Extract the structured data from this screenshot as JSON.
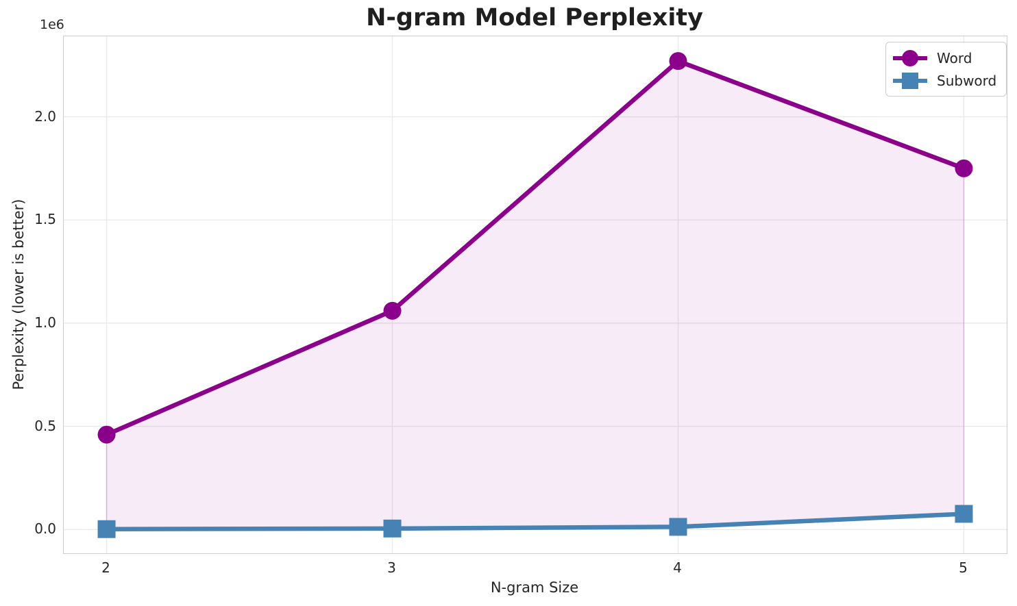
{
  "chart_data": {
    "type": "line",
    "title": "N-gram Model Perplexity",
    "xlabel": "N-gram Size",
    "ylabel": "Perplexity (lower is better)",
    "y_offset_label": "1e6",
    "x": [
      2,
      3,
      4,
      5
    ],
    "series": [
      {
        "name": "Word",
        "values": [
          460000,
          1060000,
          2270000,
          1750000
        ],
        "color": "#8B008B",
        "marker": "circle"
      },
      {
        "name": "Subword",
        "values": [
          2000,
          5000,
          13000,
          76000
        ],
        "color": "#4682B4",
        "marker": "square"
      }
    ],
    "fill_between": {
      "between": [
        "Word",
        "Subword"
      ],
      "color": "#8B008B",
      "fill_alpha": 0.08,
      "edge_alpha": 0.2
    },
    "xticks": {
      "values": [
        2,
        3,
        4,
        5
      ],
      "labels": [
        "2",
        "3",
        "4",
        "5"
      ]
    },
    "yticks": {
      "values": [
        0,
        500000,
        1000000,
        1500000,
        2000000
      ],
      "labels": [
        "0.0",
        "0.5",
        "1.0",
        "1.5",
        "2.0"
      ]
    },
    "xlim": [
      1.85,
      5.15
    ],
    "ylim": [
      -115000,
      2390000
    ],
    "grid": true,
    "grid_color": "#e9e9e9",
    "legend": {
      "location": "upper right",
      "entries": [
        "Word",
        "Subword"
      ]
    },
    "text_color": "#262626",
    "line_width": 6.5,
    "marker_size": 26
  }
}
